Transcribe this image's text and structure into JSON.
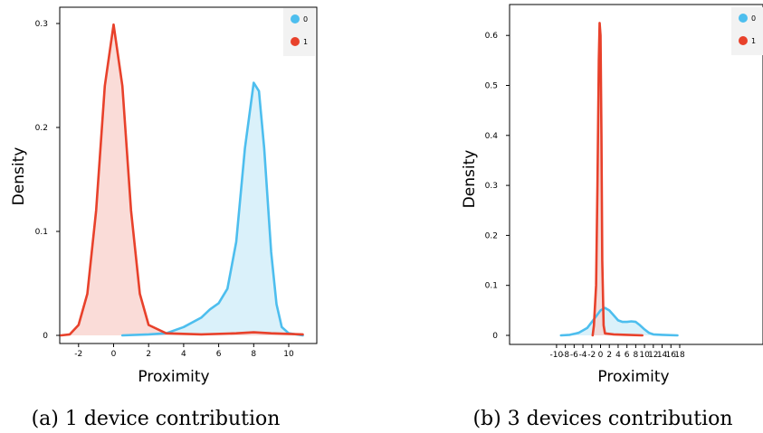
{
  "chart_data": [
    {
      "type": "area",
      "caption": "(a) 1 device contribution",
      "xlabel": "Proximity",
      "ylabel": "Density",
      "xlim": [
        -3,
        11
      ],
      "ylim": [
        0,
        0.31
      ],
      "xticks": [
        -2,
        0,
        2,
        4,
        6,
        8,
        10
      ],
      "yticks": [
        0,
        0.1,
        0.2,
        0.3
      ],
      "ytick_labels": [
        "0",
        "0.1",
        "0.2",
        "0.3"
      ],
      "legend": {
        "position": "top-right",
        "entries": [
          "0",
          "1"
        ]
      },
      "series": [
        {
          "name": "0",
          "color": "#4DBEEE",
          "fill": "#D4EEF9",
          "points": [
            [
              0.5,
              0
            ],
            [
              2,
              0.001
            ],
            [
              3,
              0.002
            ],
            [
              4,
              0.008
            ],
            [
              5,
              0.017
            ],
            [
              5.5,
              0.025
            ],
            [
              6,
              0.031
            ],
            [
              6.5,
              0.045
            ],
            [
              7,
              0.09
            ],
            [
              7.5,
              0.18
            ],
            [
              8,
              0.243
            ],
            [
              8.3,
              0.235
            ],
            [
              8.6,
              0.18
            ],
            [
              9,
              0.08
            ],
            [
              9.3,
              0.03
            ],
            [
              9.6,
              0.008
            ],
            [
              10,
              0.002
            ],
            [
              10.8,
              0
            ]
          ]
        },
        {
          "name": "1",
          "color": "#E8412B",
          "fill": "#F9D6D1",
          "points": [
            [
              -3,
              0
            ],
            [
              -2.5,
              0.001
            ],
            [
              -2,
              0.01
            ],
            [
              -1.5,
              0.04
            ],
            [
              -1,
              0.12
            ],
            [
              -0.5,
              0.24
            ],
            [
              0,
              0.299
            ],
            [
              0.5,
              0.24
            ],
            [
              1,
              0.12
            ],
            [
              1.5,
              0.04
            ],
            [
              2,
              0.01
            ],
            [
              3,
              0.002
            ],
            [
              5,
              0.001
            ],
            [
              7,
              0.002
            ],
            [
              8,
              0.003
            ],
            [
              9,
              0.002
            ],
            [
              10.8,
              0.001
            ]
          ]
        }
      ]
    },
    {
      "type": "area",
      "caption": "(b) 3 devices contribution",
      "xlabel": "Proximity",
      "ylabel": "Density",
      "xlim": [
        -10.5,
        18
      ],
      "ylim": [
        -0.005,
        0.655
      ],
      "xticks": [
        -10,
        -8,
        -6,
        -4,
        -2,
        0,
        2,
        4,
        6,
        8,
        10,
        12,
        14,
        16,
        18
      ],
      "yticks": [
        0,
        0.1,
        0.2,
        0.3,
        0.4,
        0.5,
        0.6
      ],
      "ytick_labels": [
        "0",
        "0.1",
        "0.2",
        "0.3",
        "0.4",
        "0.5",
        "0.6"
      ],
      "legend": {
        "position": "top-right",
        "entries": [
          "0",
          "1"
        ]
      },
      "series": [
        {
          "name": "0",
          "color": "#4DBEEE",
          "fill": "#D4EEF9",
          "points": [
            [
              -9,
              0
            ],
            [
              -7,
              0.001
            ],
            [
              -5,
              0.005
            ],
            [
              -3,
              0.015
            ],
            [
              -1,
              0.038
            ],
            [
              0,
              0.05
            ],
            [
              1,
              0.055
            ],
            [
              2,
              0.05
            ],
            [
              3,
              0.04
            ],
            [
              4,
              0.03
            ],
            [
              5,
              0.027
            ],
            [
              6,
              0.027
            ],
            [
              7,
              0.028
            ],
            [
              8,
              0.027
            ],
            [
              9,
              0.02
            ],
            [
              10,
              0.012
            ],
            [
              11,
              0.005
            ],
            [
              12,
              0.002
            ],
            [
              14,
              0.001
            ],
            [
              17.5,
              0
            ]
          ]
        },
        {
          "name": "1",
          "color": "#E8412B",
          "fill": "#F2D6D4",
          "points": [
            [
              -1.8,
              0
            ],
            [
              -1.5,
              0.02
            ],
            [
              -1,
              0.1
            ],
            [
              -0.7,
              0.3
            ],
            [
              -0.4,
              0.55
            ],
            [
              -0.2,
              0.625
            ],
            [
              0,
              0.6
            ],
            [
              0.2,
              0.4
            ],
            [
              0.4,
              0.15
            ],
            [
              0.7,
              0.02
            ],
            [
              1,
              0.004
            ],
            [
              3,
              0.002
            ],
            [
              6,
              0.001
            ],
            [
              9.5,
              0
            ]
          ]
        }
      ]
    }
  ]
}
